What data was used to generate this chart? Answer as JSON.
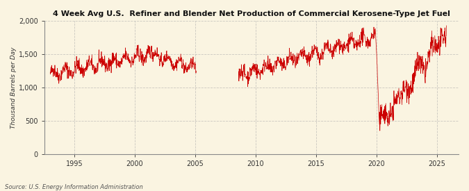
{
  "title": "4 Week Avg U.S.  Refiner and Blender Net Production of Commercial Kerosene-Type Jet Fuel",
  "ylabel": "Thousand Barrels per Day",
  "source": "Source: U.S. Energy Information Administration",
  "line_color": "#CC0000",
  "background_color": "#FAF4E1",
  "grid_color": "#AAAAAA",
  "ylim": [
    0,
    2000
  ],
  "yticks": [
    0,
    500,
    1000,
    1500,
    2000
  ],
  "xticks": [
    1995,
    2000,
    2005,
    2010,
    2015,
    2020,
    2025
  ],
  "xlim_start": 1992.5,
  "xlim_end": 2026.8
}
